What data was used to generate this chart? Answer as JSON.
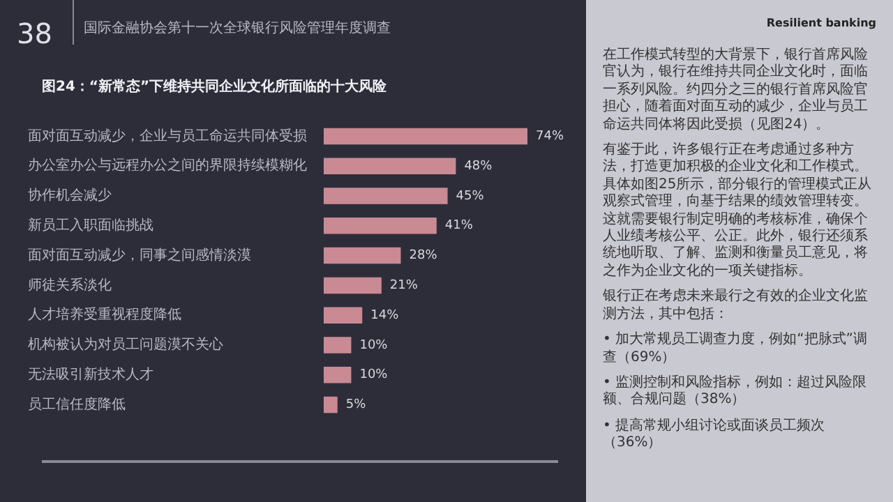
{
  "chart_data": {
    "type": "bar",
    "orientation": "horizontal",
    "title": "图24：“新常态”下维持共同企业文化所面临的十大风险",
    "categories": [
      "面对面互动减少，企业与员工命运共同体受损",
      "办公室办公与远程办公之间的界限持续模糊化",
      "协作机会减少",
      "新员工入职面临挑战",
      "面对面互动减少，同事之间感情淡漠",
      "师徒关系淡化",
      "人才培养受重视程度降低",
      "机构被认为对员工问题漠不关心",
      "无法吸引新技术人才",
      "员工信任度降低"
    ],
    "values": [
      74,
      48,
      45,
      41,
      28,
      21,
      14,
      10,
      10,
      5
    ],
    "value_labels": [
      "74%",
      "48%",
      "45%",
      "41%",
      "28%",
      "21%",
      "14%",
      "10%",
      "10%",
      "5%"
    ],
    "color": "#c98a93",
    "tick_labels": "y",
    "annotations": [
      "38",
      "国际金融协会第十一次全球银行风险管理年度调查",
      "Resilient banking",
      "在工作模式转型的大背景下，银行首席风险官认为，银行在维持共同企业文化时，面临一系列风险。约四分之三的银行首席风险官担心，随着面对面互动的减少，企业与员工命运共同体将因此受损（见图24）。",
      "有鉴于此，许多银行正在考虑通过多种方法，打造更加积极的企业文化和工作模式。具体如图25所示，部分银行的管理模式正从观察式管理，向基于结果的绩效管理转变。这就需要银行制定明确的考核标准，确保个人业绩考核公平、公正。此外，银行还须系统地听取、了解、监测和衡量员工意见，将之作为企业文化的一项关键指标。",
      "银行正在考虑未来最行之有效的企业文化监测方法，其中包括：",
      "• 加大常规员工调查力度，例如“把脉式”调查（69%）",
      "• 监测控制和风险指标，例如：超过风险限额、合规问题（38%）",
      "• 提高常规小组讨论或面谈员工频次（36%）"
    ]
  }
}
